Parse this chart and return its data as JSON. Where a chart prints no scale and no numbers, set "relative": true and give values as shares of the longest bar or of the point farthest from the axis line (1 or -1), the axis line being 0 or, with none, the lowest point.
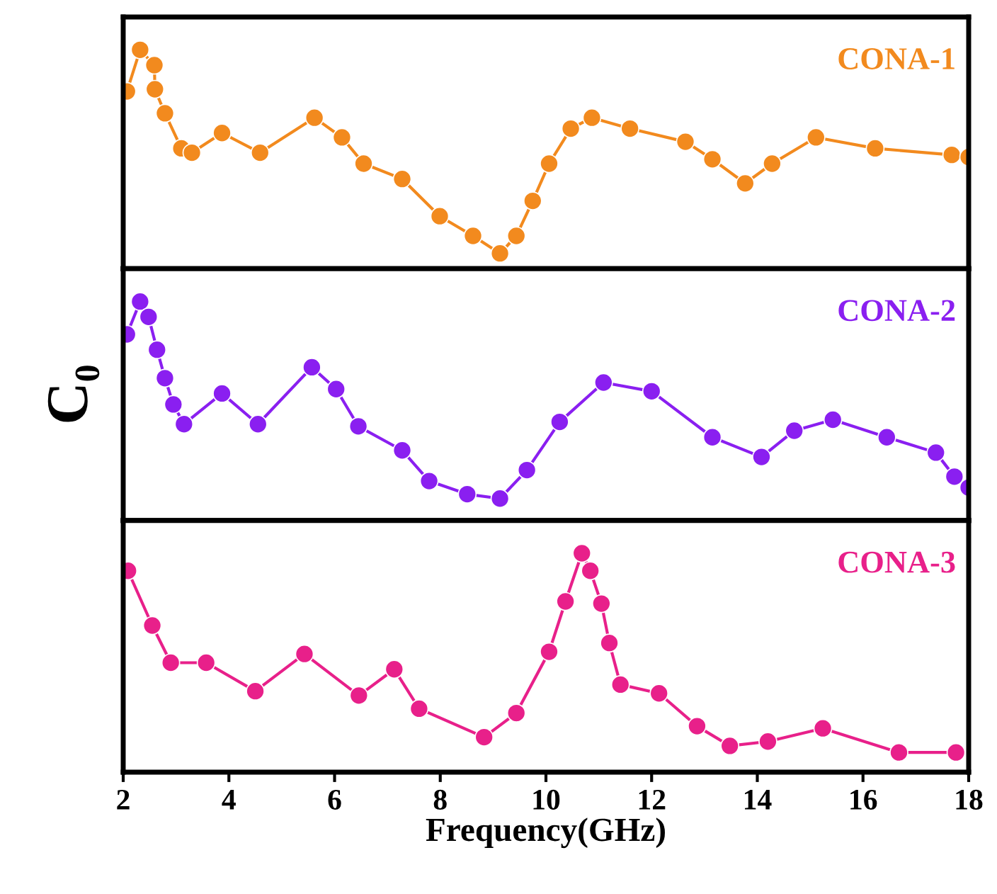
{
  "chart_data": [
    {
      "type": "line",
      "relative": true,
      "marker": "circle",
      "legend": false,
      "tick_labels": false,
      "xlim": [
        2,
        18
      ],
      "xticks": [
        2,
        4,
        6,
        8,
        10,
        12,
        14,
        16,
        18
      ],
      "x": [
        2.07,
        2.32,
        2.59,
        2.6,
        2.79,
        3.1,
        3.3,
        3.87,
        4.59,
        5.62,
        6.14,
        6.55,
        7.28,
        7.99,
        8.62,
        9.13,
        9.44,
        9.75,
        10.06,
        10.47,
        10.87,
        11.59,
        12.64,
        13.15,
        13.77,
        14.28,
        15.11,
        16.23,
        17.68,
        18
      ],
      "series": [
        {
          "name": "CONA-1",
          "color": "#f28a1e",
          "values": [
            0.81,
            1,
            0.93,
            0.82,
            0.71,
            0.55,
            0.53,
            0.62,
            0.53,
            0.69,
            0.6,
            0.48,
            0.41,
            0.24,
            0.15,
            0.07,
            0.15,
            0.31,
            0.48,
            0.64,
            0.69,
            0.64,
            0.58,
            0.5,
            0.39,
            0.48,
            0.6,
            0.55,
            0.52,
            0.51
          ]
        }
      ]
    },
    {
      "type": "line",
      "relative": true,
      "marker": "circle",
      "legend": false,
      "tick_labels": false,
      "xlim": [
        2,
        18
      ],
      "xticks": [
        2,
        4,
        6,
        8,
        10,
        12,
        14,
        16,
        18
      ],
      "ylabel": "C₀",
      "x": [
        2.07,
        2.32,
        2.48,
        2.64,
        2.79,
        2.95,
        3.15,
        3.87,
        4.55,
        5.57,
        6.03,
        6.45,
        7.28,
        7.79,
        8.51,
        9.13,
        9.64,
        10.26,
        11.09,
        12.0,
        13.15,
        14.08,
        14.7,
        15.43,
        16.45,
        17.38,
        17.73,
        18
      ],
      "series": [
        {
          "name": "CONA-2",
          "color": "#8a1ff0",
          "values": [
            0.85,
            1,
            0.93,
            0.78,
            0.65,
            0.53,
            0.44,
            0.58,
            0.44,
            0.7,
            0.6,
            0.43,
            0.32,
            0.18,
            0.12,
            0.1,
            0.23,
            0.45,
            0.63,
            0.59,
            0.38,
            0.29,
            0.41,
            0.46,
            0.38,
            0.31,
            0.2,
            0.15
          ]
        }
      ]
    },
    {
      "type": "line",
      "relative": true,
      "marker": "circle",
      "legend": false,
      "tick_labels": "x",
      "xlim": [
        2,
        18
      ],
      "xticks": [
        2,
        4,
        6,
        8,
        10,
        12,
        14,
        16,
        18
      ],
      "xlabel": "Frequency(GHz)",
      "x": [
        2.09,
        2.55,
        2.9,
        3.57,
        4.5,
        5.43,
        6.46,
        7.13,
        7.6,
        8.83,
        9.44,
        10.06,
        10.37,
        10.68,
        10.84,
        11.05,
        11.2,
        11.41,
        12.14,
        12.86,
        13.48,
        14.2,
        15.24,
        16.68,
        17.76
      ],
      "series": [
        {
          "name": "CONA-3",
          "color": "#e8208a",
          "values": [
            0.92,
            0.67,
            0.5,
            0.5,
            0.37,
            0.54,
            0.35,
            0.47,
            0.29,
            0.16,
            0.27,
            0.55,
            0.78,
            1,
            0.92,
            0.77,
            0.59,
            0.4,
            0.36,
            0.21,
            0.12,
            0.14,
            0.2,
            0.09,
            0.09
          ]
        }
      ]
    }
  ]
}
